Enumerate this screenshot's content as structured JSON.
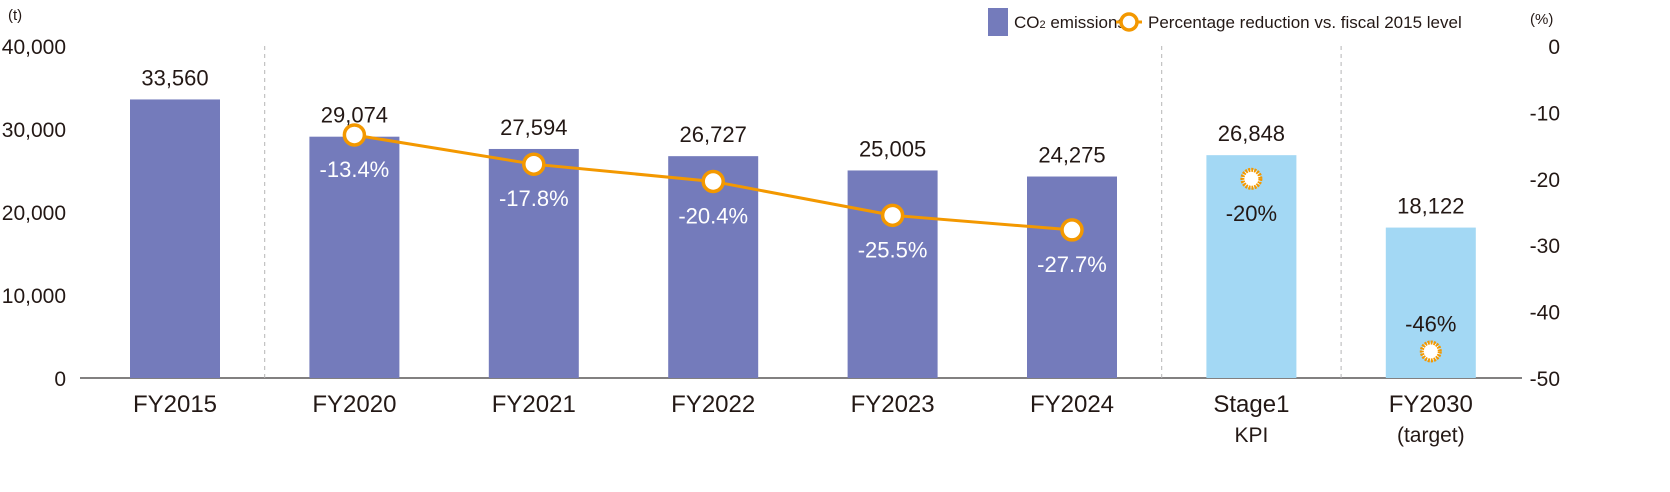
{
  "chart_data": {
    "type": "bar+line",
    "categories": [
      "FY2015",
      "FY2020",
      "FY2021",
      "FY2022",
      "FY2023",
      "FY2024",
      "Stage1\nKPI",
      "FY2030\n(target)"
    ],
    "left_axis": {
      "unit_label": "(t)",
      "ylim": [
        0,
        40000
      ],
      "ticks": [
        "0",
        "10,000",
        "20,000",
        "30,000",
        "40,000"
      ]
    },
    "right_axis": {
      "unit_label": "(%)",
      "ylim": [
        -50,
        0
      ],
      "ticks": [
        "0",
        "-10",
        "-20",
        "-30",
        "-40",
        "-50"
      ]
    },
    "bars": {
      "name": "CO2 emissions",
      "values": [
        33560,
        29074,
        27594,
        26727,
        25005,
        24275,
        26848,
        18122
      ],
      "labels": [
        "33,560",
        "29,074",
        "27,594",
        "26,727",
        "25,005",
        "24,275",
        "26,848",
        "18,122"
      ],
      "kinds": [
        "actual",
        "actual",
        "actual",
        "actual",
        "actual",
        "actual",
        "target",
        "target"
      ]
    },
    "line": {
      "name": "Percentage reduction vs. fiscal 2015 level",
      "values": [
        null,
        -13.4,
        -17.8,
        -20.4,
        -25.5,
        -27.7,
        -20,
        -46
      ],
      "labels": [
        "",
        "-13.4%",
        "-17.8%",
        "-20.4%",
        "-25.5%",
        "-27.7%",
        "-20%",
        "-46%"
      ],
      "connected_through": "FY2024"
    },
    "legend": {
      "position": "top-right",
      "bar_label_prefix": "CO",
      "bar_label_sub": "2",
      "bar_label_suffix": " emissions",
      "line_label": "Percentage reduction vs. fiscal 2015 level"
    },
    "separators_after": [
      "FY2015",
      "FY2024",
      "Stage1\nKPI"
    ],
    "colors": {
      "actual_bar": "#747bbb",
      "target_bar": "#a3d8f4",
      "line": "#f39800",
      "text": "#231815",
      "axis": "#595757",
      "separator": "#b5b5b6"
    }
  }
}
